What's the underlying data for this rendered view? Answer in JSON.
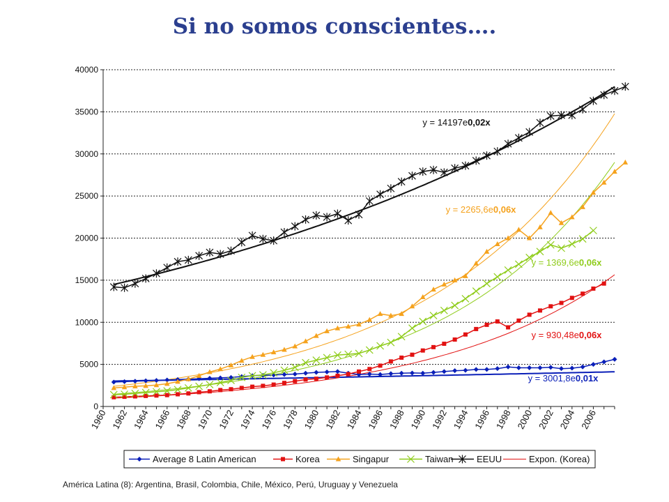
{
  "slide": {
    "title": "Si no somos conscientes….",
    "footnote": "América Latina (8): Argentina, Brasil, Colombia, Chile, México, Perú, Uruguay y Venezuela"
  },
  "chart_data": {
    "type": "line",
    "title": "",
    "xlabel": "",
    "ylabel": "",
    "ylim": [
      0,
      40000
    ],
    "yticks": [
      "0",
      "5000",
      "10000",
      "15000",
      "20000",
      "25000",
      "30000",
      "35000",
      "40000"
    ],
    "x_start": 1960,
    "x_end": 2008,
    "xticks": [
      "1960",
      "1962",
      "1964",
      "1966",
      "1968",
      "1970",
      "1972",
      "1974",
      "1976",
      "1978",
      "1980",
      "1982",
      "1984",
      "1986",
      "1988",
      "1990",
      "1992",
      "1994",
      "1996",
      "1998",
      "2000",
      "2002",
      "2004",
      "2006"
    ],
    "grid": "horizontal dashed",
    "legend_position": "bottom",
    "series": [
      {
        "name": "Average 8 Latin American",
        "color": "#0a1fb8",
        "marker": "diamond",
        "x_start": 1961,
        "values": [
          2900,
          2950,
          3000,
          3050,
          3100,
          3150,
          3200,
          3250,
          3300,
          3350,
          3400,
          3450,
          3550,
          3650,
          3700,
          3750,
          3800,
          3850,
          3950,
          4050,
          4100,
          4150,
          3950,
          3800,
          3850,
          3800,
          3900,
          3950,
          3980,
          3950,
          4050,
          4150,
          4250,
          4300,
          4400,
          4400,
          4500,
          4700,
          4600,
          4600,
          4600,
          4650,
          4500,
          4550,
          4700,
          5000,
          5300,
          5600
        ]
      },
      {
        "name": "Korea",
        "color": "#e21212",
        "marker": "square",
        "x_start": 1961,
        "values": [
          1100,
          1150,
          1200,
          1250,
          1300,
          1350,
          1450,
          1550,
          1700,
          1800,
          1950,
          2050,
          2200,
          2350,
          2450,
          2600,
          2800,
          3000,
          3200,
          3300,
          3450,
          3650,
          3850,
          4150,
          4450,
          4850,
          5350,
          5800,
          6150,
          6650,
          7050,
          7450,
          7950,
          8550,
          9200,
          9700,
          10100,
          9400,
          10200,
          10900,
          11400,
          11900,
          12300,
          12900,
          13400,
          14000,
          14600
        ]
      },
      {
        "name": "Singapur",
        "color": "#f5a21d",
        "marker": "triangle",
        "x_start": 1961,
        "values": [
          2200,
          2300,
          2400,
          2450,
          2550,
          2700,
          2950,
          3250,
          3650,
          4100,
          4450,
          4900,
          5450,
          5900,
          6150,
          6450,
          6750,
          7150,
          7750,
          8400,
          8950,
          9300,
          9500,
          9750,
          10300,
          11000,
          10800,
          11000,
          11900,
          13000,
          13900,
          14500,
          15000,
          15500,
          17000,
          18400,
          19300,
          20000,
          21000,
          20000,
          21300,
          23000,
          21800,
          22500,
          23700,
          25400,
          26600,
          27900,
          29000
        ]
      },
      {
        "name": "Taiwan",
        "color": "#8fcc1b",
        "marker": "x",
        "x_start": 1961,
        "values": [
          1400,
          1450,
          1550,
          1650,
          1750,
          1850,
          2000,
          2200,
          2400,
          2600,
          2850,
          3100,
          3450,
          3650,
          3750,
          4000,
          4300,
          4650,
          5200,
          5500,
          5800,
          6100,
          6200,
          6300,
          6700,
          7200,
          7600,
          8300,
          9300,
          10100,
          10800,
          11400,
          12000,
          12800,
          13700,
          14600,
          15400,
          16200,
          16900,
          17700,
          18400,
          19200,
          18800,
          19300,
          19900,
          20900
        ]
      },
      {
        "name": "EEUU",
        "color": "#111111",
        "marker": "star",
        "x_start": 1961,
        "values": [
          14200,
          14100,
          14600,
          15200,
          15800,
          16500,
          17200,
          17400,
          17900,
          18300,
          18100,
          18500,
          19500,
          20300,
          19900,
          19700,
          20700,
          21400,
          22200,
          22700,
          22500,
          22900,
          22100,
          22800,
          24400,
          25200,
          25900,
          26700,
          27400,
          27900,
          28100,
          27800,
          28300,
          28600,
          29200,
          29800,
          30300,
          31200,
          31900,
          32600,
          33700,
          34500,
          34600,
          34600,
          35300,
          36300,
          37000,
          37500,
          38000
        ]
      },
      {
        "name": "Expon. (Korea)",
        "color": "#e21212",
        "marker": "none",
        "trendline": true
      }
    ],
    "trendlines": [
      {
        "series": "EEUU",
        "label": "y = 14197e0,02x",
        "color": "#111111",
        "a": 14197,
        "b": 0.0205
      },
      {
        "series": "Singapur",
        "label": "y = 2265,6e0,06x",
        "color": "#f5a21d",
        "a": 2265.6,
        "b": 0.0569
      },
      {
        "series": "Taiwan",
        "label": "y = 1369,6e0,06x",
        "color": "#8fcc1b",
        "a": 1369.6,
        "b": 0.0636
      },
      {
        "series": "Korea",
        "label": "y = 930,48e0,06x",
        "color": "#e21212",
        "a": 930.48,
        "b": 0.0588
      },
      {
        "series": "Average 8 Latin American",
        "label": "y = 3001,8e0,01x",
        "color": "#0a1fb8",
        "a": 3001.8,
        "b": 0.0066
      }
    ]
  }
}
